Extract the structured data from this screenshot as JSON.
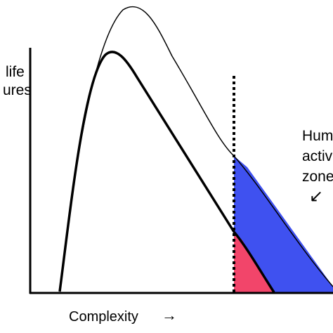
{
  "labels": {
    "y_axis_line1": "life",
    "y_axis_line2": "ures",
    "x_axis": "Complexity",
    "x_arrow": "→",
    "zone_line1": "Hum",
    "zone_line2": "activ",
    "zone_line3": "zone",
    "zone_arrow": "↙"
  },
  "colors": {
    "background": "#ffffff",
    "axis": "#000000",
    "curve": "#000000",
    "blue_region": "#3f51f0",
    "red_region": "#f2456a",
    "dashed_line": "#000000"
  }
}
